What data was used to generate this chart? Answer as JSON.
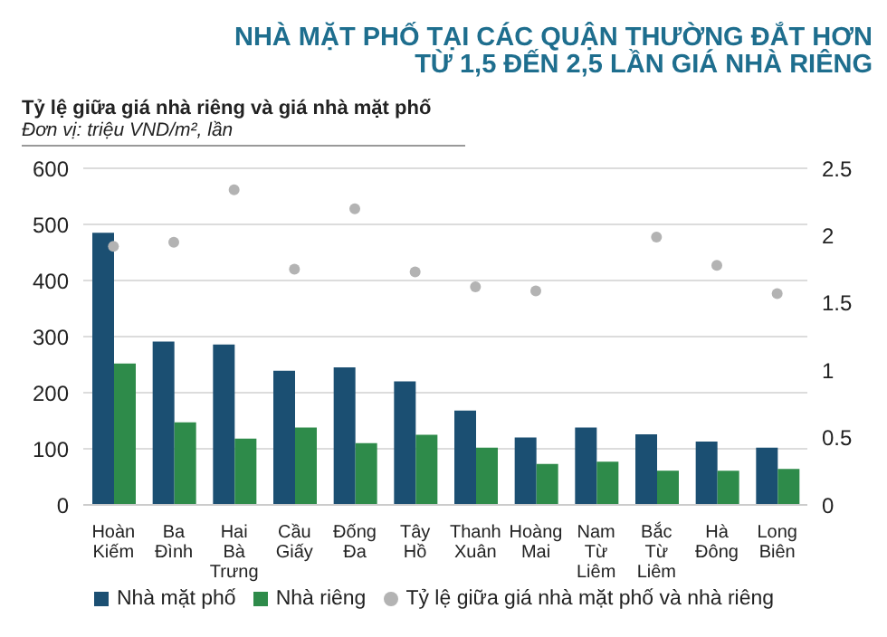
{
  "chart_data": {
    "type": "bar",
    "title": "NHÀ MẶT PHỐ TẠI CÁC QUẬN THƯỜNG ĐẮT HƠN\nTỪ 1,5 ĐẾN 2,5 LẦN GIÁ NHÀ RIÊNG",
    "subtitle": "Tỷ lệ giữa giá nhà riêng và giá nhà mặt phố",
    "annotations": [
      "Đơn vị: triệu VND/m², lần"
    ],
    "categories": [
      "Hoàn Kiếm",
      "Ba Đình",
      "Hai Bà Trưng",
      "Cầu Giấy",
      "Đống Đa",
      "Tây Hồ",
      "Thanh Xuân",
      "Hoàng Mai",
      "Nam Từ Liêm",
      "Bắc Từ Liêm",
      "Hà Đông",
      "Long Biên"
    ],
    "series": [
      {
        "name": "Nhà mặt phố",
        "color": "#1b4f72",
        "values": [
          485,
          291,
          286,
          239,
          245,
          220,
          168,
          120,
          138,
          126,
          113,
          102
        ]
      },
      {
        "name": "Nhà riêng",
        "color": "#2e8b4a",
        "values": [
          252,
          147,
          118,
          138,
          110,
          125,
          102,
          73,
          77,
          61,
          61,
          64
        ]
      },
      {
        "name": "Tỷ lệ giữa giá nhà mặt phố và nhà riêng",
        "type": "scatter",
        "axis": "y2",
        "color": "#b3b3b3",
        "values": [
          1.92,
          1.95,
          2.34,
          1.75,
          2.2,
          1.73,
          1.62,
          1.59,
          null,
          1.99,
          1.78,
          1.57
        ]
      }
    ],
    "ylim": [
      0,
      600
    ],
    "yticks": [
      0,
      100,
      200,
      300,
      400,
      500,
      600
    ],
    "y2lim": [
      0,
      2.5
    ],
    "y2ticks": [
      0,
      {
        "value": 0.5,
        "label": "0.5"
      },
      1,
      {
        "value": 1.5,
        "label": "1.5"
      },
      2,
      {
        "value": 2.5,
        "label": "2.5"
      }
    ],
    "grid": "y",
    "legend": "bottom",
    "marker": "circle"
  }
}
